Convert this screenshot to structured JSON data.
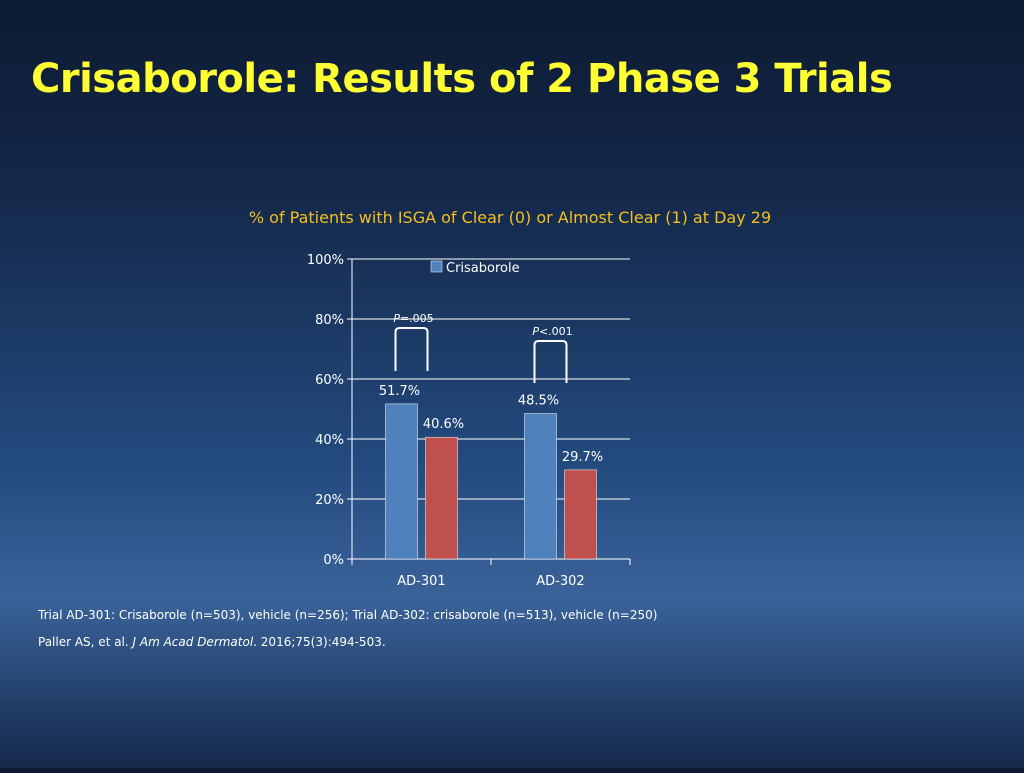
{
  "slide": {
    "title": "Crisaborole: Results of 2 Phase 3 Trials"
  },
  "chart_data": {
    "type": "bar",
    "title": "% of Patients with ISGA of Clear (0) or Almost Clear (1) at Day 29",
    "categories": [
      "AD-301",
      "AD-302"
    ],
    "series": [
      {
        "name": "Crisaborole",
        "values": [
          51.7,
          48.5
        ],
        "labels": [
          "51.7%",
          "48.5%"
        ],
        "color": "#4f81bd"
      },
      {
        "values": [
          40.6,
          29.7
        ],
        "labels": [
          "40.6%",
          "29.7%"
        ],
        "color": "#c0504d"
      }
    ],
    "ylim": [
      0,
      100
    ],
    "yticks": [
      0,
      20,
      40,
      60,
      80,
      100
    ],
    "ytick_labels": [
      "0%",
      "20%",
      "40%",
      "60%",
      "80%",
      "100%"
    ],
    "grid": true,
    "legend": "top",
    "annotations": [
      {
        "category": "AD-301",
        "italic": "P",
        "text": "=.005"
      },
      {
        "category": "AD-302",
        "italic": "P",
        "text": "<.001"
      }
    ]
  },
  "footnotes": {
    "trials": "Trial AD-301: Crisaborole (n=503), vehicle (n=256); Trial AD-302: crisaborole (n=513), vehicle (n=250)",
    "ref_authors": "Paller AS, et al. ",
    "ref_journal": "J Am Acad Dermatol",
    "ref_rest": ". 2016;75(3):494-503."
  },
  "colors": {
    "title": "#ffff33",
    "chart_title": "#f0c020",
    "text": "#ffffff"
  }
}
